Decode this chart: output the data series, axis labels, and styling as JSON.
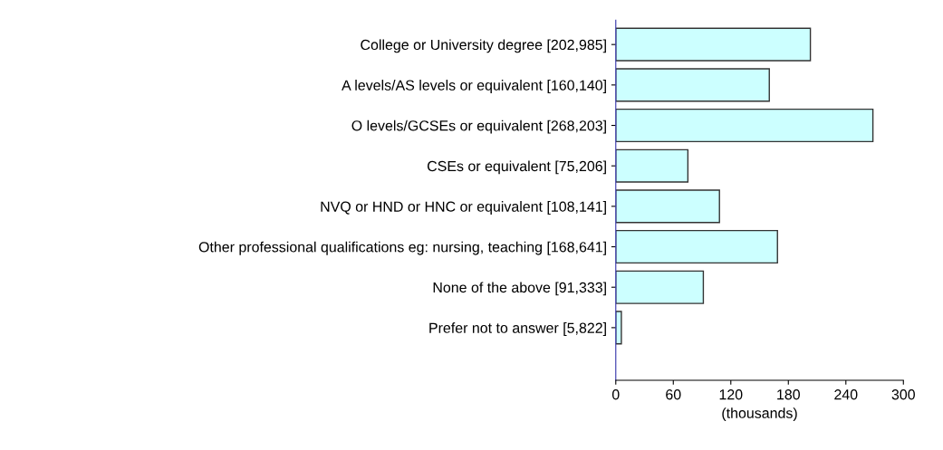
{
  "chart_data": {
    "type": "bar",
    "orientation": "horizontal",
    "categories": [
      "College or University degree [202,985]",
      "A levels/AS levels or equivalent [160,140]",
      "O levels/GCSEs or equivalent [268,203]",
      "CSEs or equivalent [75,206]",
      "NVQ or HND or HNC or equivalent [108,141]",
      "Other professional qualifications eg: nursing, teaching [168,641]",
      "None of the above [91,333]",
      "Prefer not to answer [5,822]"
    ],
    "values": [
      202.985,
      160.14,
      268.203,
      75.206,
      108.141,
      168.641,
      91.333,
      5.822
    ],
    "color": "#ccffff",
    "xlim": [
      0,
      300
    ],
    "xticks": [
      0,
      60,
      120,
      180,
      240,
      300
    ],
    "xlabel": "(thousands)",
    "grid": false,
    "legend": false
  }
}
